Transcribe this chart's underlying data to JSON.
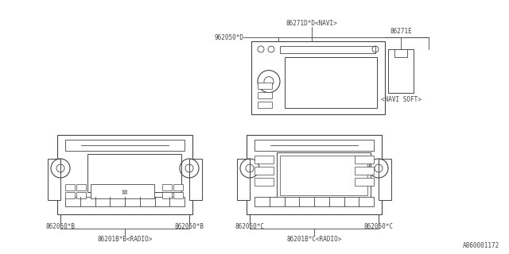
{
  "bg_color": "#ffffff",
  "line_color": "#444444",
  "text_color": "#444444",
  "font_size": 5.5,
  "diagram_id": "A860001172",
  "navi_label": "86271D*D<NAVI>",
  "navi_sublabel": "962050*D",
  "navi_soft_label": "86271E",
  "navi_soft_sublabel": "<NAVI SOFT>",
  "radio_b_label": "86201B*B<RADIO>",
  "radio_b_left": "862050*B",
  "radio_b_right": "862050*B",
  "radio_c_label": "86201B*C<RADIO>",
  "radio_c_left": "862050*C",
  "radio_c_right": "862050*C"
}
